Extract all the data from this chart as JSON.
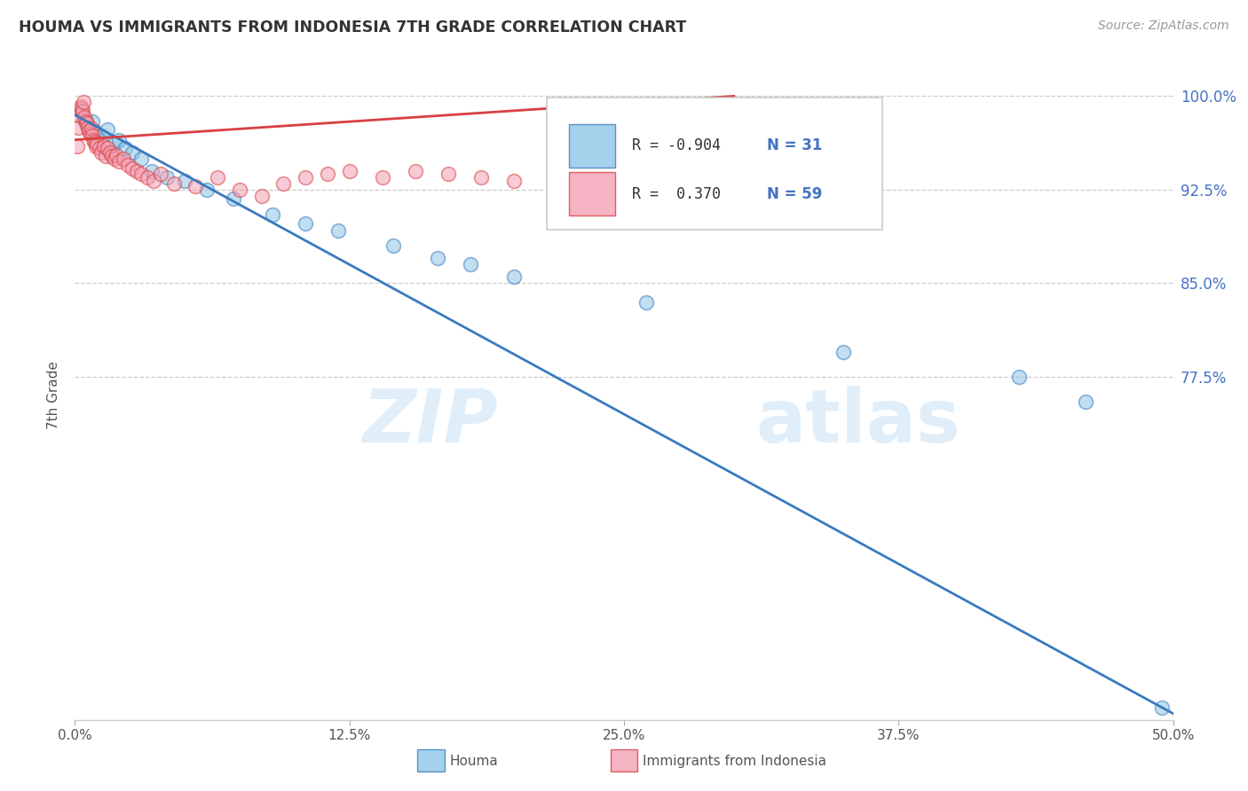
{
  "title": "HOUMA VS IMMIGRANTS FROM INDONESIA 7TH GRADE CORRELATION CHART",
  "source": "Source: ZipAtlas.com",
  "ylabel": "7th Grade",
  "xlim": [
    0.0,
    50.0
  ],
  "ylim": [
    50.0,
    102.0
  ],
  "yticks": [
    77.5,
    85.0,
    92.5,
    100.0
  ],
  "xticks": [
    0.0,
    12.5,
    25.0,
    37.5,
    50.0
  ],
  "houma_color": "#8ec6e6",
  "indonesia_color": "#f4a0b5",
  "houma_line_color": "#3a7abf",
  "indonesia_line_color": "#d94040",
  "legend_R_houma": "-0.904",
  "legend_N_houma": "31",
  "legend_R_indonesia": "0.370",
  "legend_N_indonesia": "59",
  "houma_scatter_x": [
    0.3,
    0.4,
    0.5,
    0.6,
    0.8,
    0.9,
    1.0,
    1.2,
    1.5,
    1.8,
    2.0,
    2.3,
    2.6,
    3.0,
    3.5,
    4.2,
    5.0,
    6.0,
    7.2,
    9.0,
    10.5,
    12.0,
    14.5,
    16.5,
    18.0,
    20.0,
    26.0,
    35.0,
    43.0,
    46.0,
    49.5
  ],
  "houma_scatter_y": [
    98.8,
    98.2,
    97.8,
    97.5,
    98.0,
    97.2,
    97.0,
    96.8,
    97.3,
    96.2,
    96.5,
    95.8,
    95.5,
    95.0,
    94.0,
    93.5,
    93.2,
    92.5,
    91.8,
    90.5,
    89.8,
    89.2,
    88.0,
    87.0,
    86.5,
    85.5,
    83.5,
    79.5,
    77.5,
    75.5,
    51.0
  ],
  "indonesia_scatter_x": [
    0.1,
    0.15,
    0.2,
    0.25,
    0.3,
    0.35,
    0.4,
    0.45,
    0.5,
    0.55,
    0.6,
    0.65,
    0.7,
    0.75,
    0.8,
    0.85,
    0.9,
    0.95,
    1.0,
    1.1,
    1.2,
    1.3,
    1.4,
    1.5,
    1.6,
    1.7,
    1.8,
    1.9,
    2.0,
    2.2,
    2.4,
    2.6,
    2.8,
    3.0,
    3.3,
    3.6,
    3.9,
    4.5,
    5.5,
    6.5,
    7.5,
    8.5,
    9.5,
    10.5,
    11.5,
    12.5,
    14.0,
    15.5,
    17.0,
    18.5,
    20.0,
    22.0,
    24.0,
    26.0,
    28.0,
    30.0,
    32.0,
    34.0,
    36.0
  ],
  "indonesia_scatter_y": [
    96.0,
    97.5,
    98.5,
    99.2,
    99.0,
    98.8,
    99.5,
    98.3,
    98.0,
    97.8,
    97.5,
    97.2,
    97.0,
    97.4,
    96.8,
    96.5,
    96.3,
    96.0,
    96.2,
    95.8,
    95.5,
    96.0,
    95.2,
    95.8,
    95.5,
    95.2,
    95.0,
    95.3,
    94.8,
    95.0,
    94.5,
    94.2,
    94.0,
    93.8,
    93.5,
    93.2,
    93.8,
    93.0,
    92.8,
    93.5,
    92.5,
    92.0,
    93.0,
    93.5,
    93.8,
    94.0,
    93.5,
    94.0,
    93.8,
    93.5,
    93.2,
    93.0,
    93.5,
    93.8,
    94.0,
    93.5,
    93.2,
    93.0,
    92.5
  ],
  "watermark_part1": "ZIP",
  "watermark_part2": "atlas",
  "background_color": "#ffffff",
  "grid_color": "#cccccc"
}
